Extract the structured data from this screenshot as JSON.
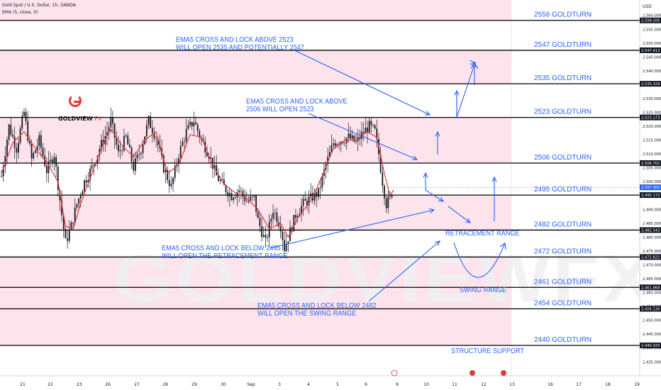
{
  "header": {
    "symbol_line": "Gold Spot / U.S. Dollar, 1h, OANDA",
    "indicator_line": "EMA (5, close, 0)"
  },
  "price_axis": {
    "currency": "USD"
  },
  "logo": {
    "name": "GOLDVIEW",
    "suffix": "FX"
  },
  "watermark": "GOLDVIEWFX",
  "colors": {
    "accent_blue": "#2962ff",
    "band_pink": "#fde4ec",
    "candle": "#131722",
    "ema": "#e53935",
    "line_black": "#000000"
  },
  "annotations": [
    {
      "id": "ann-2523",
      "lines": [
        "EMA5 CROSS AND LOCK ABOVE 2523",
        "WILL OPEN 2535 AND POTENTIALLY 2547"
      ]
    },
    {
      "id": "ann-2506",
      "lines": [
        "EMA5 CROSS AND LOCK ABOVE",
        "2506 WILL OPEN 2523"
      ]
    },
    {
      "id": "ann-2495",
      "lines": [
        "EMA5 CROSS AND LOCK BELOW 2495",
        "WILL OPEN THE RETRACEMENT RANGE"
      ]
    },
    {
      "id": "ann-2482",
      "lines": [
        "EMA5 CROSS AND LOCK BELOW 2482",
        "WILL OPEN THE SWING RANGE"
      ]
    },
    {
      "id": "ann-retr",
      "lines": [
        "RETRACEMENT RANGE"
      ]
    },
    {
      "id": "ann-swing",
      "lines": [
        "SWING RANGE"
      ]
    },
    {
      "id": "ann-struct",
      "lines": [
        "STRUCTURE SUPPORT"
      ]
    }
  ],
  "chart_data": {
    "type": "candlestick",
    "title": "Gold Spot / U.S. Dollar, 1h, OANDA",
    "ylim": [
      2432,
      2563
    ],
    "y_ticks": [
      2435,
      2440,
      2445,
      2450,
      2455,
      2460,
      2465,
      2470,
      2475,
      2480,
      2485,
      2490,
      2495,
      2500,
      2505,
      2510,
      2515,
      2520,
      2525,
      2530,
      2535,
      2540,
      2545,
      2550,
      2555,
      2560
    ],
    "x_ticks": [
      "21",
      "22",
      "23",
      "26",
      "27",
      "28",
      "29",
      "30",
      "Sep",
      "3",
      "4",
      "5",
      "6",
      "9",
      "10",
      "11",
      "12",
      "13",
      "16",
      "17",
      "18",
      "19"
    ],
    "levels": [
      {
        "label": "2558 GOLDTURN",
        "value": 2558.205,
        "axis_label": "2,558.205"
      },
      {
        "label": "2547 GOLDTURN",
        "value": 2547.412,
        "axis_label": "2,547.412"
      },
      {
        "label": "2535 GOLDTURN",
        "value": 2535.329,
        "axis_label": "2,535.329"
      },
      {
        "label": "2523 GOLDTURN",
        "value": 2523.173,
        "axis_label": "2,523.173"
      },
      {
        "label": "2506 GOLDTURN",
        "value": 2506.702,
        "axis_label": "2,506.702"
      },
      {
        "label": "2495 GOLDTURN",
        "value": 2495.172,
        "axis_label": "2,495.172"
      },
      {
        "label": "2482 GOLDTURN",
        "value": 2482.543,
        "axis_label": "2,482.543"
      },
      {
        "label": "2472 GOLDTURN",
        "value": 2472.822,
        "axis_label": "2,472.822"
      },
      {
        "label": "2461 GOLDTURN",
        "value": 2461.868,
        "axis_label": "2,461.868"
      },
      {
        "label": "2454 GOLDTURN",
        "value": 2454.13,
        "axis_label": "2,454.130"
      },
      {
        "label": "2440 GOLDTURN",
        "value": 2440.925,
        "axis_label": "2,440.925"
      }
    ],
    "last_price": {
      "value": 2497.969,
      "label": "2,497.969"
    },
    "bands": [
      [
        2558.205,
        2563
      ],
      [
        2535.329,
        2547.412
      ],
      [
        2506.702,
        2523.173
      ],
      [
        2482.543,
        2495.172
      ],
      [
        2454.13,
        2472.822
      ],
      [
        2440.925,
        2454.13
      ]
    ],
    "price_path": [
      [
        0,
        2502
      ],
      [
        4,
        2520
      ],
      [
        8,
        2512
      ],
      [
        12,
        2525
      ],
      [
        16,
        2508
      ],
      [
        20,
        2515
      ],
      [
        24,
        2504
      ],
      [
        28,
        2510
      ],
      [
        32,
        2488
      ],
      [
        34,
        2478
      ],
      [
        37,
        2484
      ],
      [
        40,
        2492
      ],
      [
        44,
        2500
      ],
      [
        48,
        2505
      ],
      [
        52,
        2512
      ],
      [
        56,
        2518
      ],
      [
        58,
        2522
      ],
      [
        62,
        2510
      ],
      [
        66,
        2516
      ],
      [
        70,
        2505
      ],
      [
        74,
        2512
      ],
      [
        78,
        2522
      ],
      [
        82,
        2516
      ],
      [
        86,
        2505
      ],
      [
        90,
        2498
      ],
      [
        94,
        2510
      ],
      [
        98,
        2518
      ],
      [
        102,
        2522
      ],
      [
        106,
        2515
      ],
      [
        110,
        2510
      ],
      [
        114,
        2502
      ],
      [
        118,
        2498
      ],
      [
        122,
        2495
      ],
      [
        126,
        2497
      ],
      [
        130,
        2493
      ],
      [
        134,
        2494
      ],
      [
        136,
        2486
      ],
      [
        140,
        2478
      ],
      [
        144,
        2490
      ],
      [
        148,
        2484
      ],
      [
        150,
        2476
      ],
      [
        153,
        2482
      ],
      [
        156,
        2488
      ],
      [
        160,
        2492
      ],
      [
        164,
        2494
      ],
      [
        168,
        2496
      ],
      [
        172,
        2506
      ],
      [
        176,
        2514
      ],
      [
        180,
        2515
      ],
      [
        184,
        2516
      ],
      [
        188,
        2514
      ],
      [
        192,
        2518
      ],
      [
        195,
        2520
      ],
      [
        198,
        2518
      ],
      [
        200,
        2510
      ],
      [
        202,
        2500
      ],
      [
        204,
        2492
      ],
      [
        206,
        2494
      ],
      [
        208,
        2498
      ]
    ],
    "ema_path": [
      [
        0,
        2503
      ],
      [
        6,
        2514
      ],
      [
        12,
        2518
      ],
      [
        18,
        2512
      ],
      [
        24,
        2507
      ],
      [
        30,
        2500
      ],
      [
        34,
        2484
      ],
      [
        38,
        2483
      ],
      [
        42,
        2492
      ],
      [
        48,
        2503
      ],
      [
        54,
        2514
      ],
      [
        58,
        2519
      ],
      [
        64,
        2513
      ],
      [
        70,
        2509
      ],
      [
        76,
        2515
      ],
      [
        82,
        2518
      ],
      [
        88,
        2503
      ],
      [
        94,
        2506
      ],
      [
        100,
        2517
      ],
      [
        106,
        2516
      ],
      [
        112,
        2506
      ],
      [
        118,
        2499
      ],
      [
        124,
        2496
      ],
      [
        130,
        2494
      ],
      [
        136,
        2490
      ],
      [
        142,
        2483
      ],
      [
        148,
        2485
      ],
      [
        152,
        2480
      ],
      [
        158,
        2488
      ],
      [
        164,
        2493
      ],
      [
        170,
        2502
      ],
      [
        176,
        2512
      ],
      [
        182,
        2515
      ],
      [
        188,
        2515
      ],
      [
        194,
        2518
      ],
      [
        199,
        2516
      ],
      [
        203,
        2503
      ],
      [
        206,
        2495
      ],
      [
        208,
        2497
      ]
    ]
  }
}
